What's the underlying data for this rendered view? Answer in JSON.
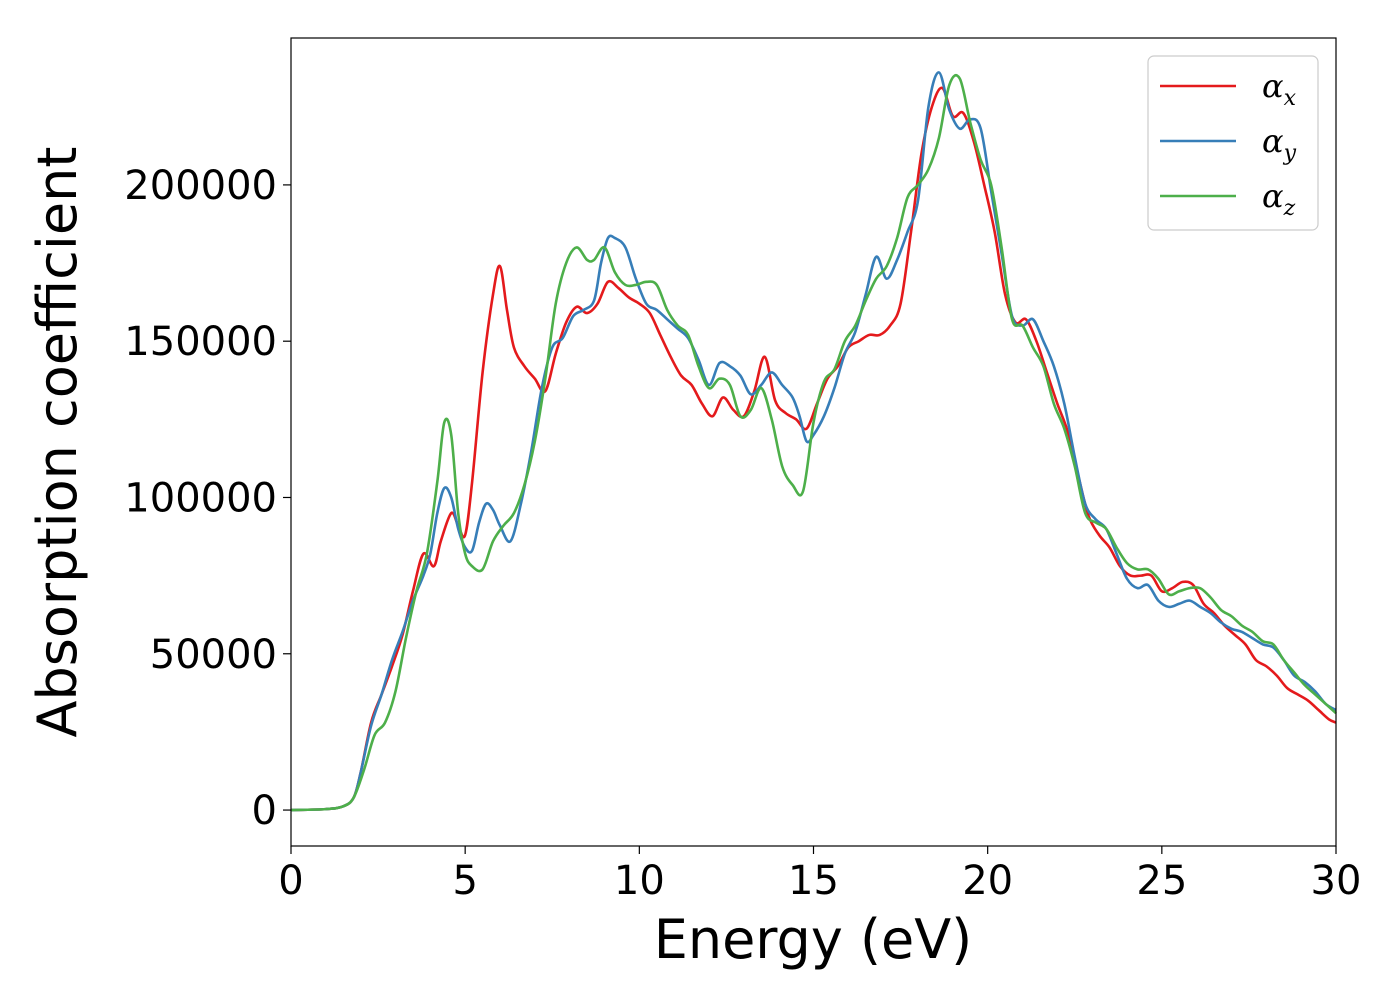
{
  "chart_data": {
    "type": "line",
    "title": "",
    "xlabel": "Energy (eV)",
    "ylabel": "Absorption coefficient",
    "xlim": [
      0,
      30
    ],
    "ylim": [
      -11500,
      247000
    ],
    "xticks": [
      0,
      5,
      10,
      15,
      20,
      25,
      30
    ],
    "yticks": [
      0,
      50000,
      100000,
      150000,
      200000
    ],
    "grid": false,
    "legend_position": "top-right",
    "series": [
      {
        "name": "α",
        "subscript": "x",
        "color": "#e41a1c",
        "points": [
          [
            0,
            0
          ],
          [
            1.0,
            300
          ],
          [
            1.5,
            1200
          ],
          [
            1.8,
            4000
          ],
          [
            2.0,
            12000
          ],
          [
            2.3,
            28000
          ],
          [
            2.6,
            37000
          ],
          [
            2.9,
            46000
          ],
          [
            3.2,
            56000
          ],
          [
            3.5,
            70000
          ],
          [
            3.8,
            82000
          ],
          [
            4.1,
            78000
          ],
          [
            4.3,
            86000
          ],
          [
            4.6,
            95000
          ],
          [
            4.8,
            91000
          ],
          [
            5.0,
            88000
          ],
          [
            5.2,
            105000
          ],
          [
            5.5,
            140000
          ],
          [
            5.8,
            165000
          ],
          [
            6.0,
            174000
          ],
          [
            6.2,
            160000
          ],
          [
            6.4,
            148000
          ],
          [
            6.7,
            142000
          ],
          [
            7.0,
            138000
          ],
          [
            7.3,
            134000
          ],
          [
            7.6,
            146000
          ],
          [
            7.9,
            156000
          ],
          [
            8.2,
            161000
          ],
          [
            8.5,
            159000
          ],
          [
            8.8,
            162000
          ],
          [
            9.1,
            169000
          ],
          [
            9.4,
            167000
          ],
          [
            9.7,
            164000
          ],
          [
            10.0,
            162000
          ],
          [
            10.3,
            159000
          ],
          [
            10.6,
            152000
          ],
          [
            10.9,
            145000
          ],
          [
            11.2,
            139000
          ],
          [
            11.5,
            136000
          ],
          [
            11.8,
            130000
          ],
          [
            12.1,
            126000
          ],
          [
            12.4,
            132000
          ],
          [
            12.7,
            128000
          ],
          [
            13.0,
            126000
          ],
          [
            13.3,
            134000
          ],
          [
            13.6,
            145000
          ],
          [
            13.9,
            131000
          ],
          [
            14.2,
            127000
          ],
          [
            14.5,
            125000
          ],
          [
            14.8,
            122000
          ],
          [
            15.1,
            130000
          ],
          [
            15.4,
            138000
          ],
          [
            15.7,
            142000
          ],
          [
            16.0,
            148000
          ],
          [
            16.3,
            150000
          ],
          [
            16.6,
            152000
          ],
          [
            16.9,
            152000
          ],
          [
            17.2,
            155000
          ],
          [
            17.5,
            162000
          ],
          [
            17.8,
            185000
          ],
          [
            18.1,
            210000
          ],
          [
            18.4,
            225000
          ],
          [
            18.7,
            231000
          ],
          [
            19.0,
            222000
          ],
          [
            19.3,
            223000
          ],
          [
            19.6,
            214000
          ],
          [
            19.9,
            200000
          ],
          [
            20.2,
            185000
          ],
          [
            20.5,
            165000
          ],
          [
            20.8,
            156000
          ],
          [
            21.1,
            157000
          ],
          [
            21.4,
            150000
          ],
          [
            21.7,
            140000
          ],
          [
            22.0,
            130000
          ],
          [
            22.3,
            121000
          ],
          [
            22.6,
            107000
          ],
          [
            22.9,
            94000
          ],
          [
            23.2,
            88000
          ],
          [
            23.5,
            84000
          ],
          [
            23.8,
            78000
          ],
          [
            24.1,
            75000
          ],
          [
            24.4,
            75000
          ],
          [
            24.7,
            75000
          ],
          [
            25.0,
            70000
          ],
          [
            25.3,
            71000
          ],
          [
            25.6,
            73000
          ],
          [
            25.9,
            72000
          ],
          [
            26.2,
            66000
          ],
          [
            26.5,
            63000
          ],
          [
            26.8,
            59000
          ],
          [
            27.1,
            56000
          ],
          [
            27.4,
            53000
          ],
          [
            27.7,
            48000
          ],
          [
            28.0,
            46000
          ],
          [
            28.3,
            43000
          ],
          [
            28.6,
            39000
          ],
          [
            28.9,
            37000
          ],
          [
            29.2,
            35000
          ],
          [
            29.5,
            32000
          ],
          [
            29.8,
            29000
          ],
          [
            30.0,
            28000
          ]
        ]
      },
      {
        "name": "α",
        "subscript": "y",
        "color": "#377eb8",
        "points": [
          [
            0,
            0
          ],
          [
            1.0,
            300
          ],
          [
            1.5,
            1200
          ],
          [
            1.8,
            4000
          ],
          [
            2.0,
            12000
          ],
          [
            2.3,
            27000
          ],
          [
            2.6,
            37000
          ],
          [
            2.9,
            48000
          ],
          [
            3.2,
            57000
          ],
          [
            3.5,
            67000
          ],
          [
            3.8,
            75000
          ],
          [
            4.0,
            82000
          ],
          [
            4.2,
            95000
          ],
          [
            4.4,
            103000
          ],
          [
            4.6,
            100000
          ],
          [
            4.8,
            90000
          ],
          [
            5.0,
            84000
          ],
          [
            5.2,
            83000
          ],
          [
            5.4,
            92000
          ],
          [
            5.6,
            98000
          ],
          [
            5.8,
            96000
          ],
          [
            6.0,
            91000
          ],
          [
            6.3,
            86000
          ],
          [
            6.6,
            98000
          ],
          [
            6.9,
            115000
          ],
          [
            7.2,
            135000
          ],
          [
            7.5,
            148000
          ],
          [
            7.8,
            151000
          ],
          [
            8.1,
            158000
          ],
          [
            8.4,
            160000
          ],
          [
            8.7,
            163000
          ],
          [
            8.9,
            175000
          ],
          [
            9.1,
            183000
          ],
          [
            9.3,
            183000
          ],
          [
            9.6,
            180000
          ],
          [
            9.9,
            170000
          ],
          [
            10.2,
            162000
          ],
          [
            10.5,
            160000
          ],
          [
            10.8,
            157000
          ],
          [
            11.1,
            154000
          ],
          [
            11.4,
            151000
          ],
          [
            11.7,
            144000
          ],
          [
            12.0,
            136000
          ],
          [
            12.3,
            143000
          ],
          [
            12.6,
            142000
          ],
          [
            12.9,
            139000
          ],
          [
            13.2,
            133000
          ],
          [
            13.5,
            136000
          ],
          [
            13.8,
            140000
          ],
          [
            14.1,
            136000
          ],
          [
            14.4,
            132000
          ],
          [
            14.6,
            126000
          ],
          [
            14.8,
            118000
          ],
          [
            15.0,
            120000
          ],
          [
            15.3,
            126000
          ],
          [
            15.6,
            135000
          ],
          [
            15.9,
            146000
          ],
          [
            16.2,
            153000
          ],
          [
            16.5,
            165000
          ],
          [
            16.8,
            177000
          ],
          [
            17.1,
            170000
          ],
          [
            17.4,
            176000
          ],
          [
            17.7,
            185000
          ],
          [
            18.0,
            195000
          ],
          [
            18.3,
            225000
          ],
          [
            18.6,
            236000
          ],
          [
            18.9,
            224000
          ],
          [
            19.2,
            218000
          ],
          [
            19.5,
            221000
          ],
          [
            19.8,
            218000
          ],
          [
            20.1,
            198000
          ],
          [
            20.4,
            178000
          ],
          [
            20.7,
            158000
          ],
          [
            21.0,
            155000
          ],
          [
            21.3,
            157000
          ],
          [
            21.6,
            150000
          ],
          [
            21.9,
            142000
          ],
          [
            22.2,
            130000
          ],
          [
            22.5,
            113000
          ],
          [
            22.8,
            98000
          ],
          [
            23.1,
            93000
          ],
          [
            23.4,
            90000
          ],
          [
            23.7,
            82000
          ],
          [
            24.0,
            74000
          ],
          [
            24.3,
            71000
          ],
          [
            24.6,
            72000
          ],
          [
            24.9,
            67000
          ],
          [
            25.2,
            65000
          ],
          [
            25.5,
            66000
          ],
          [
            25.8,
            67000
          ],
          [
            26.1,
            65000
          ],
          [
            26.4,
            63000
          ],
          [
            26.7,
            60000
          ],
          [
            27.0,
            58000
          ],
          [
            27.3,
            57000
          ],
          [
            27.6,
            55000
          ],
          [
            27.9,
            53000
          ],
          [
            28.2,
            52000
          ],
          [
            28.5,
            48000
          ],
          [
            28.8,
            43000
          ],
          [
            29.1,
            41000
          ],
          [
            29.4,
            38000
          ],
          [
            29.7,
            34000
          ],
          [
            30.0,
            32000
          ]
        ]
      },
      {
        "name": "α",
        "subscript": "z",
        "color": "#4daf4a",
        "points": [
          [
            0,
            0
          ],
          [
            1.0,
            300
          ],
          [
            1.5,
            1200
          ],
          [
            1.8,
            4000
          ],
          [
            2.1,
            13000
          ],
          [
            2.4,
            24000
          ],
          [
            2.7,
            28000
          ],
          [
            3.0,
            38000
          ],
          [
            3.3,
            55000
          ],
          [
            3.6,
            70000
          ],
          [
            3.9,
            82000
          ],
          [
            4.2,
            105000
          ],
          [
            4.4,
            124000
          ],
          [
            4.6,
            120000
          ],
          [
            4.8,
            95000
          ],
          [
            5.0,
            82000
          ],
          [
            5.2,
            78000
          ],
          [
            5.5,
            77000
          ],
          [
            5.8,
            86000
          ],
          [
            6.1,
            91000
          ],
          [
            6.4,
            95000
          ],
          [
            6.7,
            104000
          ],
          [
            7.0,
            118000
          ],
          [
            7.3,
            138000
          ],
          [
            7.6,
            162000
          ],
          [
            7.9,
            175000
          ],
          [
            8.2,
            180000
          ],
          [
            8.5,
            176000
          ],
          [
            8.7,
            176000
          ],
          [
            9.0,
            180000
          ],
          [
            9.3,
            172000
          ],
          [
            9.6,
            168000
          ],
          [
            9.9,
            168000
          ],
          [
            10.2,
            169000
          ],
          [
            10.5,
            168000
          ],
          [
            10.8,
            160000
          ],
          [
            11.1,
            155000
          ],
          [
            11.4,
            152000
          ],
          [
            11.7,
            142000
          ],
          [
            12.0,
            135000
          ],
          [
            12.3,
            138000
          ],
          [
            12.6,
            136000
          ],
          [
            12.9,
            126000
          ],
          [
            13.2,
            128000
          ],
          [
            13.5,
            135000
          ],
          [
            13.8,
            125000
          ],
          [
            14.1,
            110000
          ],
          [
            14.4,
            104000
          ],
          [
            14.7,
            102000
          ],
          [
            15.0,
            124000
          ],
          [
            15.3,
            137000
          ],
          [
            15.6,
            141000
          ],
          [
            15.9,
            150000
          ],
          [
            16.2,
            155000
          ],
          [
            16.5,
            163000
          ],
          [
            16.8,
            170000
          ],
          [
            17.1,
            174000
          ],
          [
            17.4,
            183000
          ],
          [
            17.7,
            196000
          ],
          [
            18.0,
            200000
          ],
          [
            18.3,
            205000
          ],
          [
            18.6,
            215000
          ],
          [
            18.9,
            232000
          ],
          [
            19.2,
            234000
          ],
          [
            19.5,
            220000
          ],
          [
            19.8,
            208000
          ],
          [
            20.1,
            200000
          ],
          [
            20.4,
            180000
          ],
          [
            20.7,
            157000
          ],
          [
            21.0,
            155000
          ],
          [
            21.3,
            148000
          ],
          [
            21.6,
            142000
          ],
          [
            21.9,
            130000
          ],
          [
            22.2,
            122000
          ],
          [
            22.5,
            110000
          ],
          [
            22.8,
            95000
          ],
          [
            23.1,
            92000
          ],
          [
            23.4,
            90000
          ],
          [
            23.7,
            84000
          ],
          [
            24.0,
            79000
          ],
          [
            24.3,
            77000
          ],
          [
            24.6,
            77000
          ],
          [
            24.9,
            74000
          ],
          [
            25.2,
            69000
          ],
          [
            25.5,
            70000
          ],
          [
            25.8,
            71000
          ],
          [
            26.1,
            71000
          ],
          [
            26.4,
            68000
          ],
          [
            26.7,
            64000
          ],
          [
            27.0,
            62000
          ],
          [
            27.3,
            59000
          ],
          [
            27.6,
            57000
          ],
          [
            27.9,
            54000
          ],
          [
            28.2,
            53000
          ],
          [
            28.5,
            48000
          ],
          [
            28.8,
            44000
          ],
          [
            29.1,
            40000
          ],
          [
            29.4,
            37000
          ],
          [
            29.7,
            34000
          ],
          [
            30.0,
            31000
          ]
        ]
      }
    ]
  }
}
